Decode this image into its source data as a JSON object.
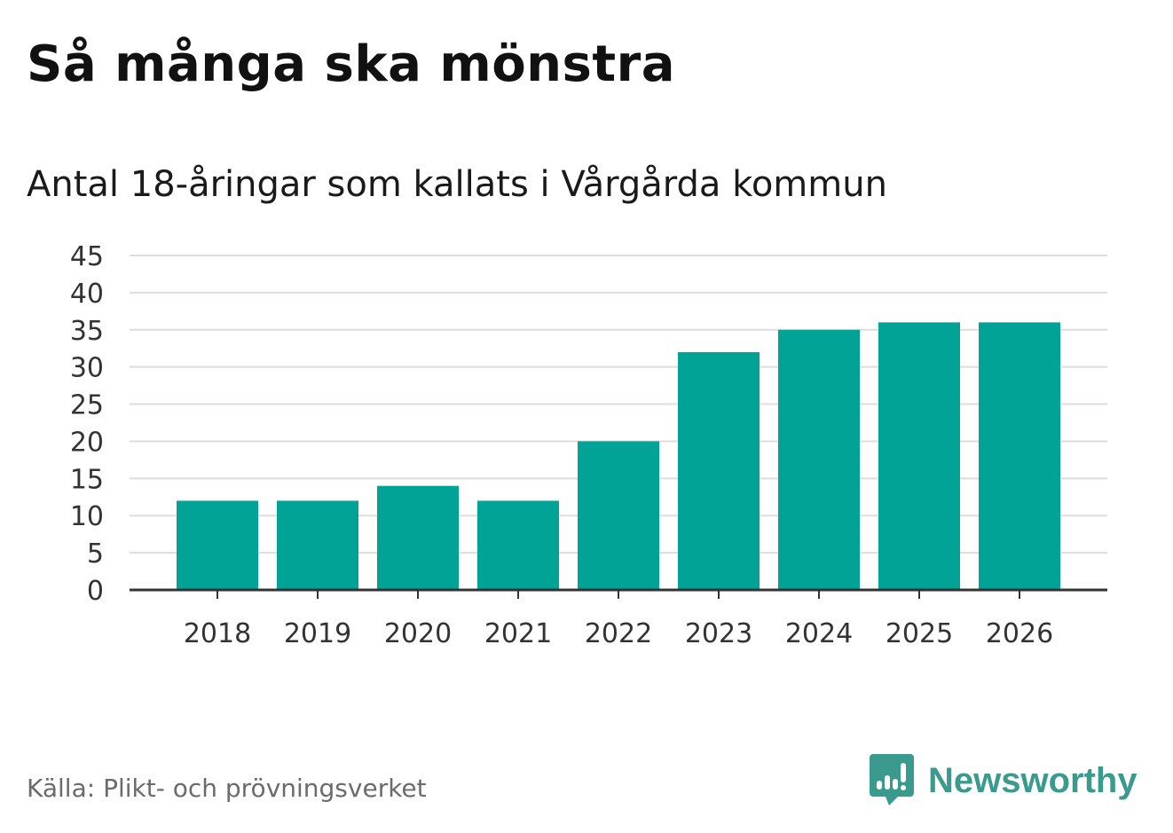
{
  "title": "Så många ska mönstra",
  "subtitle": "Antal 18-åringar som kallats i Vårgårda kommun",
  "source": "Källa: Plikt- och prövningsverket",
  "logo": "Newsworthy",
  "colors": {
    "bar": "#00a396",
    "grid": "#dddddd",
    "axis": "#333333",
    "logo": "#3a9a8e"
  },
  "chart_data": {
    "type": "bar",
    "title": "Så många ska mönstra",
    "subtitle": "Antal 18-åringar som kallats i Vårgårda kommun",
    "xlabel": "",
    "ylabel": "",
    "categories": [
      "2018",
      "2019",
      "2020",
      "2021",
      "2022",
      "2023",
      "2024",
      "2025",
      "2026"
    ],
    "values": [
      12,
      12,
      14,
      12,
      20,
      32,
      35,
      36,
      36
    ],
    "ylim": [
      0,
      45
    ],
    "yticks": [
      0,
      5,
      10,
      15,
      20,
      25,
      30,
      35,
      40,
      45
    ],
    "grid": true,
    "legend": "none"
  }
}
